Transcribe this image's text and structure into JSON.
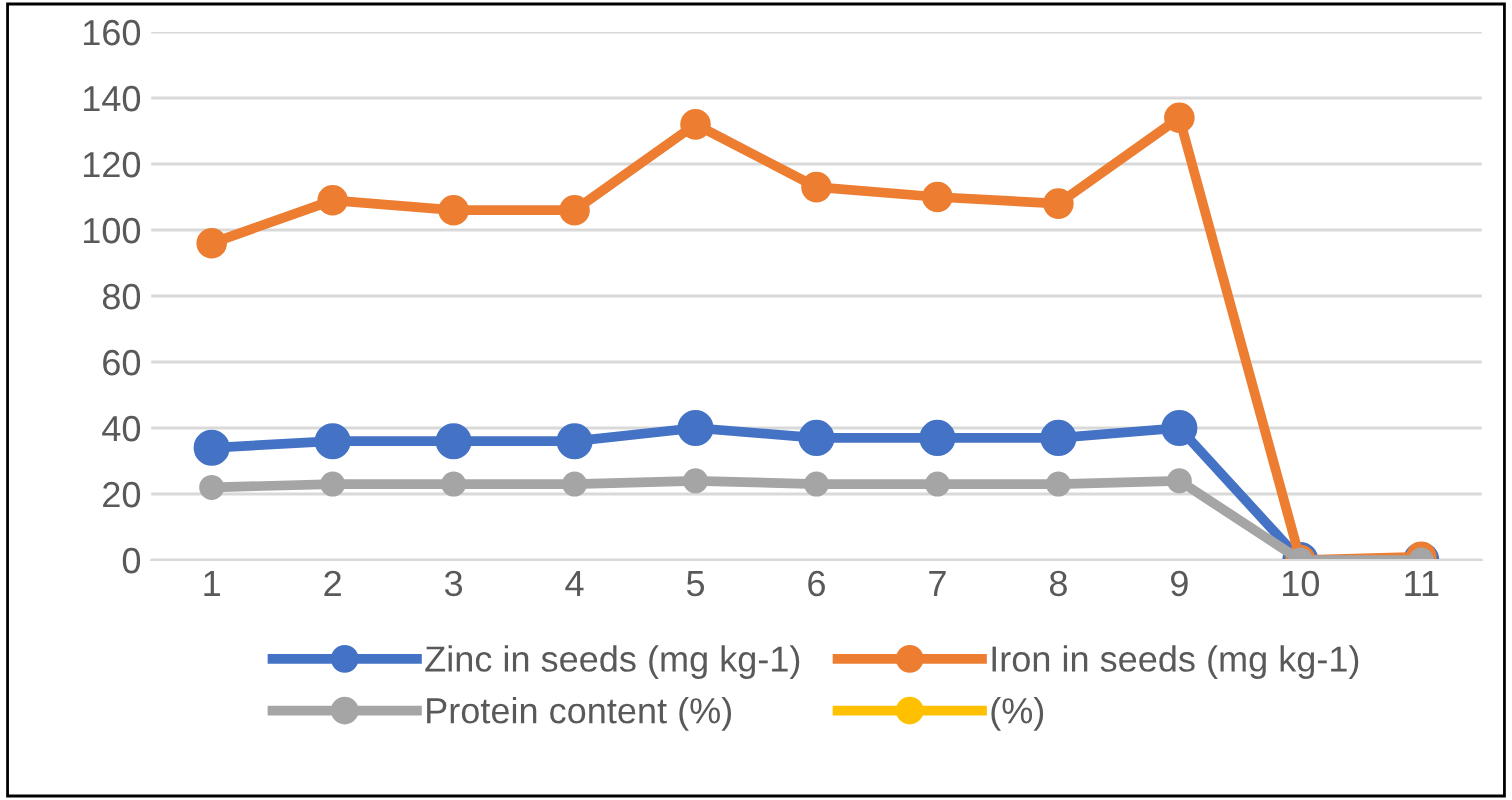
{
  "chart_data": {
    "type": "line",
    "categories": [
      "1",
      "2",
      "3",
      "4",
      "5",
      "6",
      "7",
      "8",
      "9",
      "10",
      "11"
    ],
    "series": [
      {
        "name": "Zinc in seeds (mg kg-1)",
        "color": "#4472c4",
        "values": [
          34,
          36,
          36,
          36,
          40,
          37,
          37,
          37,
          40,
          0,
          0
        ]
      },
      {
        "name": "Iron in seeds (mg kg-1)",
        "color": "#ed7d31",
        "values": [
          96,
          109,
          106,
          106,
          132,
          113,
          110,
          108,
          134,
          0,
          1
        ]
      },
      {
        "name": "Protein content (%)",
        "color": "#a5a5a5",
        "values": [
          22,
          23,
          23,
          23,
          24,
          23,
          23,
          23,
          24,
          0,
          0
        ]
      },
      {
        "name": "(%)",
        "color": "#ffc000",
        "values": [
          null,
          null,
          null,
          null,
          null,
          null,
          null,
          null,
          null,
          null,
          null
        ]
      }
    ],
    "ylim": [
      0,
      160
    ],
    "yticks": [
      0,
      20,
      40,
      60,
      80,
      100,
      120,
      140,
      160
    ],
    "grid": "y",
    "legend": "bottom",
    "marker": "circle",
    "line_style": "solid"
  }
}
